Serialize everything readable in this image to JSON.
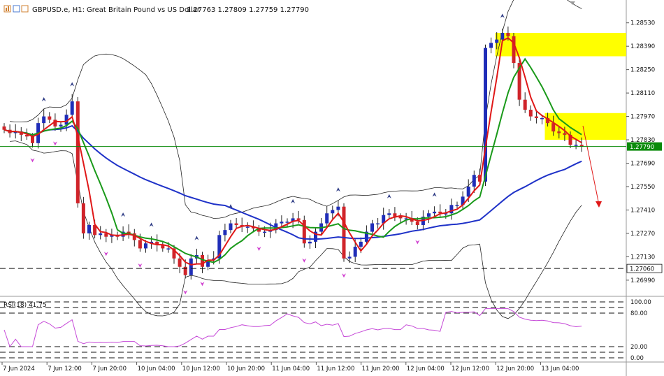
{
  "header": {
    "symbol": "GBPUSD.e, H1:",
    "description": "Great Britain Pound vs US Dollar",
    "ohlc": "1.27763 1.27809 1.27759 1.27790"
  },
  "rsi_label": "RSI(18) 41.75",
  "colors": {
    "bull": "#1f2db8",
    "bear": "#d0242a",
    "ma_fast": "#e01818",
    "ma_slow": "#1a9a1a",
    "ma_long": "#1f32c8",
    "rsi": "#c64ad8",
    "zone": "#ffff00"
  },
  "chart_data": [
    {
      "type": "candlestick",
      "price_axis_ticks": [
        "1.28530",
        "1.28390",
        "1.28250",
        "1.28110",
        "1.27970",
        "1.27830",
        "1.27690",
        "1.27550",
        "1.27410",
        "1.27270",
        "1.27130",
        "1.26990"
      ],
      "current_price": "1.27790",
      "level_price": "1.27060",
      "time_axis_labels": [
        "7 Jun 2024",
        "7 Jun 12:00",
        "7 Jun 20:00",
        "10 Jun 04:00",
        "10 Jun 12:00",
        "10 Jun 20:00",
        "11 Jun 04:00",
        "11 Jun 12:00",
        "11 Jun 20:00",
        "12 Jun 04:00",
        "12 Jun 12:00",
        "12 Jun 20:00",
        "13 Jun 04:00"
      ],
      "ylim": [
        1.2691,
        1.2865
      ],
      "closes": [
        1.2789,
        1.2787,
        1.2788,
        1.2786,
        1.2785,
        1.2781,
        1.2793,
        1.2797,
        1.2795,
        1.2791,
        1.2792,
        1.2798,
        1.2806,
        1.2745,
        1.2727,
        1.2732,
        1.2726,
        1.2727,
        1.2725,
        1.2726,
        1.2725,
        1.2728,
        1.2727,
        1.2723,
        1.2718,
        1.2721,
        1.2722,
        1.272,
        1.2718,
        1.2718,
        1.2712,
        1.2707,
        1.2702,
        1.2712,
        1.2714,
        1.2707,
        1.2711,
        1.2712,
        1.2726,
        1.2729,
        1.2733,
        1.2732,
        1.2731,
        1.2731,
        1.273,
        1.2728,
        1.2728,
        1.2729,
        1.2733,
        1.2734,
        1.2734,
        1.2736,
        1.2735,
        1.2721,
        1.2722,
        1.2728,
        1.2733,
        1.2739,
        1.2741,
        1.2743,
        1.2712,
        1.2713,
        1.2719,
        1.2722,
        1.2728,
        1.2733,
        1.2733,
        1.2738,
        1.2739,
        1.2737,
        1.2736,
        1.2736,
        1.2734,
        1.2732,
        1.2737,
        1.2739,
        1.274,
        1.2739,
        1.2739,
        1.2744,
        1.2744,
        1.2749,
        1.2755,
        1.2762,
        1.2758,
        1.2838,
        1.2841,
        1.2843,
        1.2847,
        1.2845,
        1.2829,
        1.2807,
        1.2801,
        1.2797,
        1.2796,
        1.2796,
        1.2793,
        1.2788,
        1.2787,
        1.2786,
        1.278,
        1.278,
        1.2779
      ],
      "overlays": [
        "MA fast",
        "MA slow",
        "MA long",
        "Bollinger Bands"
      ],
      "zones": [
        {
          "price_top": 1.2847,
          "price_bottom": 1.2833
        },
        {
          "price_top": 1.2799,
          "price_bottom": 1.2783
        }
      ]
    },
    {
      "type": "line",
      "name": "RSI(18)",
      "value": 41.75,
      "levels": [
        "100.00",
        "80.00",
        "20.00",
        "0.00"
      ],
      "level_values": [
        100,
        90,
        80,
        20,
        10,
        0
      ]
    }
  ]
}
